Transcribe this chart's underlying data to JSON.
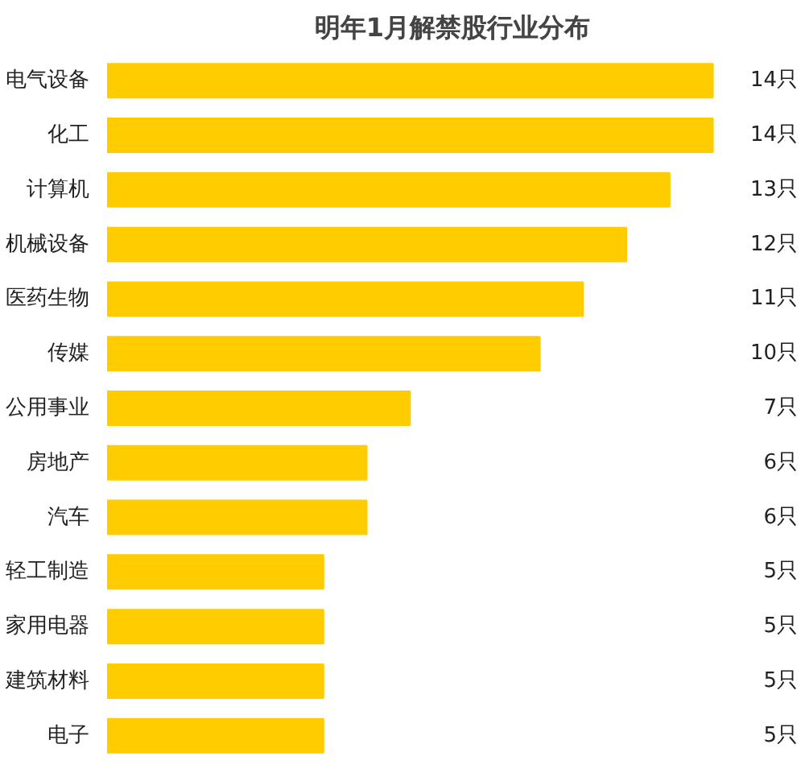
{
  "chart_data": {
    "type": "bar",
    "orientation": "horizontal",
    "title": "明年1月解禁股行业分布",
    "categories": [
      "电气设备",
      "化工",
      "计算机",
      "机械设备",
      "医药生物",
      "传媒",
      "公用事业",
      "房地产",
      "汽车",
      "轻工制造",
      "家用电器",
      "建筑材料",
      "电子"
    ],
    "values": [
      14,
      14,
      13,
      12,
      11,
      10,
      7,
      6,
      6,
      5,
      5,
      5,
      5
    ],
    "value_labels": [
      "14只",
      "14只",
      "13只",
      "12只",
      "11只",
      "10只",
      "7只",
      "6只",
      "6只",
      "5只",
      "5只",
      "5只",
      "5只"
    ],
    "color": "#ffcc00"
  }
}
